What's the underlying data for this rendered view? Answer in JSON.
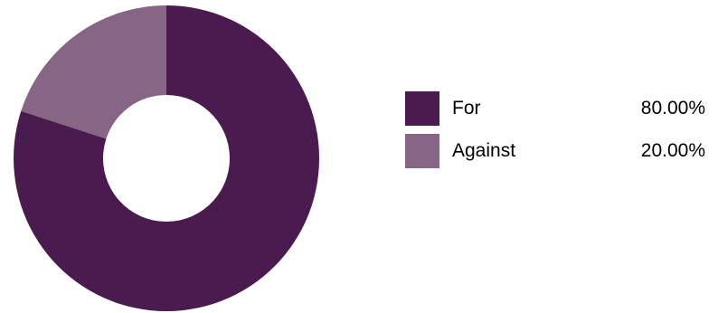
{
  "chart_data": {
    "type": "pie",
    "variant": "donut",
    "categories": [
      "For",
      "Against"
    ],
    "values": [
      80.0,
      20.0
    ],
    "value_labels": [
      "80.00%",
      "20.00%"
    ],
    "colors": [
      "#4a1b4f",
      "#876585"
    ],
    "title": "",
    "legend_position": "right"
  },
  "legend": {
    "items": [
      {
        "label": "For",
        "value": "80.00%",
        "color": "#4a1b4f"
      },
      {
        "label": "Against",
        "value": "20.00%",
        "color": "#876585"
      }
    ]
  }
}
